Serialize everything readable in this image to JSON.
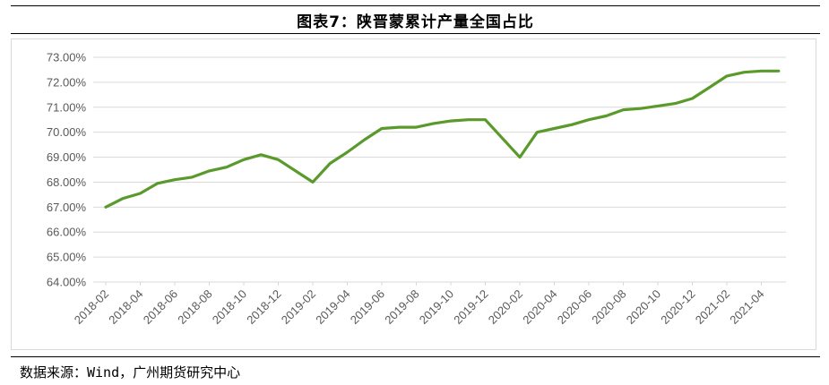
{
  "title": "图表7：陕晋蒙累计产量全国占比",
  "source": "数据来源：Wind，广州期货研究中心",
  "colors": {
    "line": "#5a9a2b",
    "grid": "#d9d9d9",
    "axis_text": "#595959"
  },
  "chart_data": {
    "type": "line",
    "title": "图表7：陕晋蒙累计产量全国占比",
    "xlabel": "",
    "ylabel": "",
    "ylim": [
      64.0,
      73.0
    ],
    "y_ticks": [
      "64.00%",
      "65.00%",
      "66.00%",
      "67.00%",
      "68.00%",
      "69.00%",
      "70.00%",
      "71.00%",
      "72.00%",
      "73.00%"
    ],
    "x_ticks": [
      "2018-02",
      "2018-04",
      "2018-06",
      "2018-08",
      "2018-10",
      "2018-12",
      "2019-02",
      "2019-04",
      "2019-06",
      "2019-08",
      "2019-10",
      "2019-12",
      "2020-02",
      "2020-04",
      "2020-06",
      "2020-08",
      "2020-10",
      "2020-12",
      "2021-02",
      "2021-04"
    ],
    "grid": true,
    "legend": "none",
    "x": [
      "2018-02",
      "2018-03",
      "2018-04",
      "2018-05",
      "2018-06",
      "2018-07",
      "2018-08",
      "2018-09",
      "2018-10",
      "2018-11",
      "2018-12",
      "2019-02",
      "2019-03",
      "2019-04",
      "2019-05",
      "2019-06",
      "2019-07",
      "2019-08",
      "2019-09",
      "2019-10",
      "2019-11",
      "2019-12",
      "2020-02",
      "2020-03",
      "2020-04",
      "2020-05",
      "2020-06",
      "2020-07",
      "2020-08",
      "2020-09",
      "2020-10",
      "2020-11",
      "2020-12",
      "2021-01",
      "2021-02",
      "2021-03",
      "2021-04",
      "2021-05"
    ],
    "series": [
      {
        "values": [
          67.0,
          67.35,
          67.55,
          67.95,
          68.1,
          68.2,
          68.45,
          68.6,
          68.9,
          69.1,
          68.9,
          68.0,
          68.75,
          69.2,
          69.7,
          70.15,
          70.2,
          70.2,
          70.35,
          70.45,
          70.5,
          70.5,
          69.0,
          70.0,
          70.15,
          70.3,
          70.5,
          70.65,
          70.9,
          70.95,
          71.05,
          71.15,
          71.35,
          71.8,
          72.25,
          72.4,
          72.45,
          72.45
        ]
      }
    ]
  }
}
